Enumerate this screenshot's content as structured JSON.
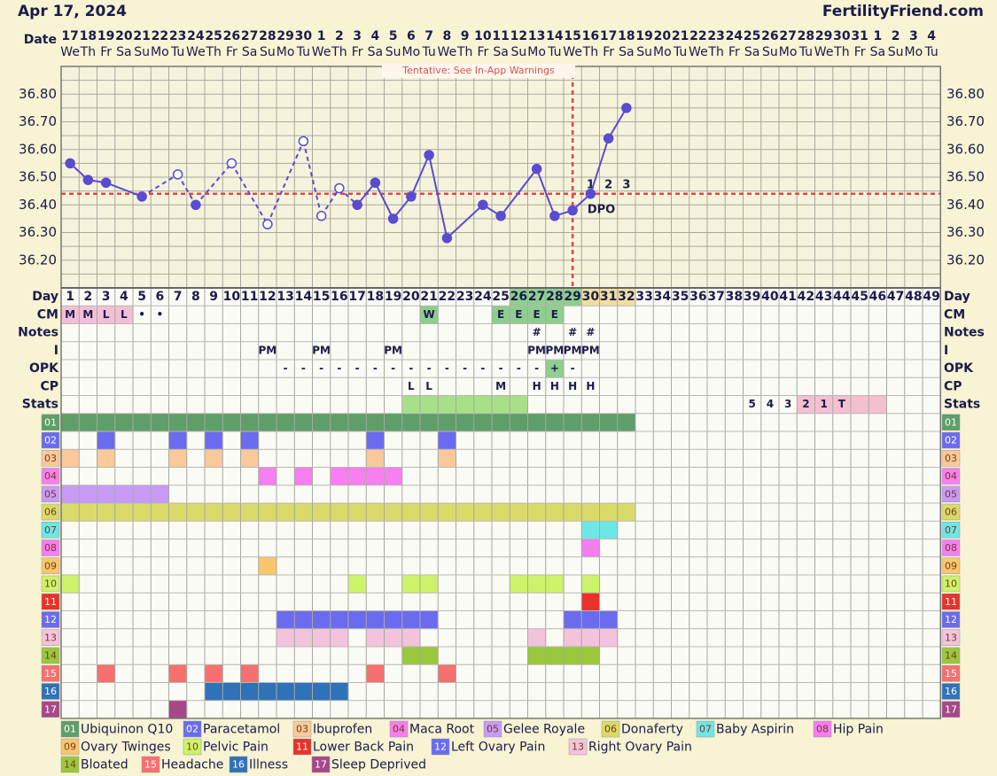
{
  "header": {
    "date": "Apr 17, 2024",
    "site": "FertilityFriend.com"
  },
  "chart_data": {
    "type": "line",
    "date_label": "Date",
    "dates": [
      17,
      18,
      19,
      20,
      21,
      22,
      23,
      24,
      25,
      26,
      27,
      28,
      29,
      30,
      1,
      2,
      3,
      4,
      5,
      6,
      7,
      8,
      9,
      10,
      11,
      12,
      13,
      14,
      15,
      16,
      17,
      18,
      19,
      20,
      21,
      22,
      23,
      24,
      25,
      26,
      27,
      28,
      29,
      30,
      31,
      1,
      2,
      3,
      4
    ],
    "weekdays": [
      "We",
      "Th",
      "Fr",
      "Sa",
      "Su",
      "Mo",
      "Tu",
      "We",
      "Th",
      "Fr",
      "Sa",
      "Su",
      "Mo",
      "Tu",
      "We",
      "Th",
      "Fr",
      "Sa",
      "Su",
      "Mo",
      "Tu",
      "We",
      "Th",
      "Fr",
      "Sa",
      "Su",
      "Mo",
      "Tu",
      "We",
      "Th",
      "Fr",
      "Sa",
      "Su",
      "Mo",
      "Tu",
      "We",
      "Th",
      "Fr",
      "Sa",
      "Su",
      "Mo",
      "Tu",
      "We",
      "Th",
      "Fr",
      "Sa",
      "Su",
      "Mo",
      "Tu"
    ],
    "day_label": "Day",
    "days": [
      1,
      2,
      3,
      4,
      5,
      6,
      7,
      8,
      9,
      10,
      11,
      12,
      13,
      14,
      15,
      16,
      17,
      18,
      19,
      20,
      21,
      22,
      23,
      24,
      25,
      26,
      27,
      28,
      29,
      30,
      31,
      32,
      33,
      34,
      35,
      36,
      37,
      38,
      39,
      40,
      41,
      42,
      43,
      44,
      45,
      46,
      47,
      48,
      49
    ],
    "day_fills": [
      null,
      null,
      null,
      null,
      null,
      null,
      null,
      null,
      null,
      null,
      null,
      null,
      null,
      null,
      null,
      null,
      null,
      null,
      null,
      null,
      null,
      null,
      null,
      null,
      null,
      "#8fce8f",
      "#8fce8f",
      "#8fce8f",
      "#8fce8f",
      "#f0dea0",
      "#f0dea0",
      "#f0dea0",
      null,
      null,
      null,
      null,
      null,
      null,
      null,
      null,
      null,
      null,
      null,
      null,
      null,
      null,
      null,
      null,
      null
    ],
    "x": [
      1,
      2,
      3,
      5,
      7,
      8,
      10,
      12,
      14,
      15,
      16,
      17,
      18,
      19,
      20,
      21,
      22,
      24,
      25,
      27,
      28,
      29,
      30,
      31,
      32
    ],
    "values": [
      36.55,
      36.49,
      36.48,
      36.43,
      36.51,
      36.4,
      36.55,
      36.33,
      36.63,
      36.36,
      36.46,
      36.4,
      36.48,
      36.35,
      36.43,
      36.58,
      36.28,
      36.4,
      36.36,
      36.53,
      36.36,
      36.38,
      36.44,
      36.64,
      36.75
    ],
    "open_points": [
      7,
      10,
      12,
      14,
      15,
      16
    ],
    "color": "#5b4bd1",
    "ylim": [
      36.1,
      36.9
    ],
    "yticks": [
      {
        "value": 36.2,
        "label": "36.20"
      },
      {
        "value": 36.3,
        "label": "36.30"
      },
      {
        "value": 36.4,
        "label": "36.40"
      },
      {
        "value": 36.5,
        "label": "36.50"
      },
      {
        "value": 36.6,
        "label": "36.60"
      },
      {
        "value": 36.7,
        "label": "36.70"
      },
      {
        "value": 36.8,
        "label": "36.80"
      }
    ],
    "minor_yticks": [
      36.15,
      36.25,
      36.35,
      36.45,
      36.55,
      36.65,
      36.75,
      36.85
    ],
    "coverline": 36.44,
    "ovulation_day": 29,
    "dpo_labels": [
      1,
      2,
      3
    ],
    "dpo_label": "DPO",
    "note": "Tentative: See In-App Warnings"
  },
  "rows": [
    {
      "label": "CM",
      "cells": [
        "M",
        "M",
        "L",
        "L",
        "•",
        "•",
        null,
        null,
        null,
        null,
        null,
        null,
        null,
        null,
        null,
        null,
        null,
        null,
        null,
        null,
        "W",
        null,
        null,
        null,
        "E",
        "E",
        "E",
        "E",
        null,
        null,
        null,
        null,
        null,
        null,
        null,
        null,
        null,
        null,
        null,
        null,
        null,
        null,
        null,
        null,
        null,
        null,
        null,
        null,
        null
      ],
      "fills": [
        "#f2c0d6",
        "#f2c0d6",
        "#f2c0d6",
        "#f2c0d6",
        null,
        null,
        null,
        null,
        null,
        null,
        null,
        null,
        null,
        null,
        null,
        null,
        null,
        null,
        null,
        null,
        "#8fce8f",
        null,
        null,
        null,
        "#8fce8f",
        "#8fce8f",
        "#8fce8f",
        "#8fce8f",
        null,
        null,
        null,
        null,
        null,
        null,
        null,
        null,
        null,
        null,
        null,
        null,
        null,
        null,
        null,
        null,
        null,
        null,
        null,
        null,
        null
      ]
    },
    {
      "label": "Notes",
      "cells": [
        null,
        null,
        null,
        null,
        null,
        null,
        null,
        null,
        null,
        null,
        null,
        null,
        null,
        null,
        null,
        null,
        null,
        null,
        null,
        null,
        null,
        null,
        null,
        null,
        null,
        null,
        "#",
        null,
        "#",
        "#",
        null,
        null,
        null,
        null,
        null,
        null,
        null,
        null,
        null,
        null,
        null,
        null,
        null,
        null,
        null,
        null,
        null,
        null,
        null
      ]
    },
    {
      "label": "I",
      "cells": [
        null,
        null,
        null,
        null,
        null,
        null,
        null,
        null,
        null,
        null,
        null,
        "PM",
        null,
        null,
        "PM",
        null,
        null,
        null,
        "PM",
        null,
        null,
        null,
        null,
        null,
        null,
        null,
        "PM",
        "PM",
        "PM",
        "PM",
        null,
        null,
        null,
        null,
        null,
        null,
        null,
        null,
        null,
        null,
        null,
        null,
        null,
        null,
        null,
        null,
        null,
        null,
        null
      ]
    },
    {
      "label": "OPK",
      "cells": [
        null,
        null,
        null,
        null,
        null,
        null,
        null,
        null,
        null,
        null,
        null,
        null,
        "-",
        "-",
        "-",
        "-",
        "-",
        "-",
        "-",
        "-",
        "-",
        "-",
        "-",
        "-",
        "-",
        "-",
        "-",
        "+",
        "-",
        null,
        null,
        null,
        null,
        null,
        null,
        null,
        null,
        null,
        null,
        null,
        null,
        null,
        null,
        null,
        null,
        null,
        null,
        null,
        null
      ],
      "fills": [
        null,
        null,
        null,
        null,
        null,
        null,
        null,
        null,
        null,
        null,
        null,
        null,
        null,
        null,
        null,
        null,
        null,
        null,
        null,
        null,
        null,
        null,
        null,
        null,
        null,
        null,
        null,
        "#8fce8f",
        null,
        null,
        null,
        null,
        null,
        null,
        null,
        null,
        null,
        null,
        null,
        null,
        null,
        null,
        null,
        null,
        null,
        null,
        null,
        null,
        null
      ]
    },
    {
      "label": "CP",
      "cells": [
        null,
        null,
        null,
        null,
        null,
        null,
        null,
        null,
        null,
        null,
        null,
        null,
        null,
        null,
        null,
        null,
        null,
        null,
        null,
        "L",
        "L",
        null,
        null,
        null,
        "M",
        null,
        "H",
        "H",
        "H",
        "H",
        null,
        null,
        null,
        null,
        null,
        null,
        null,
        null,
        null,
        null,
        null,
        null,
        null,
        null,
        null,
        null,
        null,
        null,
        null
      ]
    },
    {
      "label": "Stats",
      "cells": [
        null,
        null,
        null,
        null,
        null,
        null,
        null,
        null,
        null,
        null,
        null,
        null,
        null,
        null,
        null,
        null,
        null,
        null,
        null,
        null,
        null,
        null,
        null,
        null,
        null,
        null,
        null,
        null,
        null,
        null,
        null,
        null,
        null,
        null,
        null,
        null,
        null,
        null,
        5,
        4,
        3,
        2,
        1,
        "T",
        null,
        null,
        null,
        null,
        null
      ],
      "fills": [
        null,
        null,
        null,
        null,
        null,
        null,
        null,
        null,
        null,
        null,
        null,
        null,
        null,
        null,
        null,
        null,
        null,
        null,
        null,
        "#a8e08a",
        "#a8e08a",
        "#a8e08a",
        "#a8e08a",
        "#a8e08a",
        "#a8e08a",
        "#a8e08a",
        null,
        null,
        null,
        null,
        null,
        null,
        null,
        null,
        null,
        null,
        null,
        null,
        null,
        null,
        null,
        "#f4c0d0",
        "#f4c0d0",
        "#f4c0d0",
        "#f4c0d0",
        "#f4c0d0",
        null,
        null,
        null
      ]
    }
  ],
  "symptoms": [
    {
      "code": "01",
      "name": "Ubiquinon Q10",
      "color": "#5e9e68",
      "days": [
        1,
        2,
        3,
        4,
        5,
        6,
        7,
        8,
        9,
        10,
        11,
        12,
        13,
        14,
        15,
        16,
        17,
        18,
        19,
        20,
        21,
        22,
        23,
        24,
        25,
        26,
        27,
        28,
        29,
        30,
        31,
        32
      ]
    },
    {
      "code": "02",
      "name": "Paracetamol",
      "color": "#6b6bef",
      "days": [
        3,
        7,
        9,
        11,
        18,
        22
      ]
    },
    {
      "code": "03",
      "name": "Ibuprofen",
      "color": "#f9c999",
      "days": [
        1,
        3,
        7,
        9,
        11,
        18,
        22
      ]
    },
    {
      "code": "04",
      "name": "Maca Root",
      "color": "#f77ff2",
      "days": [
        12,
        14,
        16,
        17,
        18,
        19
      ]
    },
    {
      "code": "05",
      "name": "Gelee Royale",
      "color": "#c79bf7",
      "days": [
        1,
        2,
        3,
        4,
        5,
        6
      ]
    },
    {
      "code": "06",
      "name": "Donaferty",
      "color": "#dada6a",
      "days": [
        1,
        2,
        3,
        4,
        5,
        6,
        7,
        8,
        9,
        10,
        11,
        12,
        13,
        14,
        15,
        16,
        17,
        18,
        19,
        20,
        21,
        22,
        23,
        24,
        25,
        26,
        27,
        28,
        29,
        30,
        31,
        32
      ]
    },
    {
      "code": "07",
      "name": "Baby Aspirin",
      "color": "#6ee6e6",
      "days": [
        30,
        31
      ]
    },
    {
      "code": "08",
      "name": "Hip Pain",
      "color": "#f47ef0",
      "days": [
        30
      ]
    },
    {
      "code": "09",
      "name": "Ovary Twinges",
      "color": "#f9c66e",
      "days": [
        12
      ]
    },
    {
      "code": "10",
      "name": "Pelvic Pain",
      "color": "#cdf36a",
      "days": [
        1,
        17,
        20,
        21,
        26,
        27,
        28,
        30
      ]
    },
    {
      "code": "11",
      "name": "Lower Back Pain",
      "color": "#e8322a",
      "days": [
        30
      ]
    },
    {
      "code": "12",
      "name": "Left Ovary Pain",
      "color": "#6b6bef",
      "days": [
        13,
        14,
        15,
        16,
        17,
        18,
        19,
        20,
        21,
        29,
        30,
        31
      ]
    },
    {
      "code": "13",
      "name": "Right Ovary Pain",
      "color": "#f3c3dc",
      "days": [
        13,
        14,
        15,
        16,
        18,
        19,
        20,
        27,
        29,
        30,
        31
      ]
    },
    {
      "code": "14",
      "name": "Bloated",
      "color": "#99c83c",
      "days": [
        20,
        21,
        27,
        28,
        29,
        30
      ]
    },
    {
      "code": "15",
      "name": "Headache",
      "color": "#f77070",
      "days": [
        3,
        7,
        9,
        11,
        18,
        22
      ]
    },
    {
      "code": "16",
      "name": "Illness",
      "color": "#2f72b8",
      "days": [
        9,
        10,
        11,
        12,
        13,
        14,
        15,
        16
      ]
    },
    {
      "code": "17",
      "name": "Sleep Deprived",
      "color": "#a6478a",
      "days": [
        7
      ]
    }
  ]
}
